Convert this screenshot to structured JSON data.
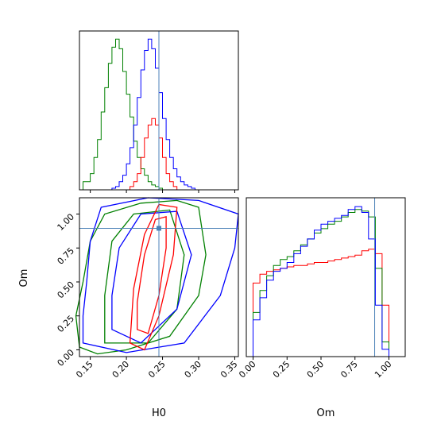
{
  "colors": {
    "red": "#ff0000",
    "green": "#008000",
    "blue": "#0000ff",
    "truth": "#4c82b8"
  },
  "chart_data": {
    "type": "corner",
    "parameters": [
      "H0",
      "Om"
    ],
    "truth": {
      "H0": 0.245,
      "Om": 0.895
    },
    "panels": [
      {
        "id": "hist-h0",
        "type": "histogram",
        "xlim": [
          0.135,
          0.355
        ],
        "bin_edges": [
          0.14,
          0.15,
          0.155,
          0.16,
          0.165,
          0.17,
          0.175,
          0.18,
          0.185,
          0.19,
          0.195,
          0.2,
          0.205,
          0.21,
          0.215,
          0.22,
          0.225,
          0.23,
          0.235,
          0.24,
          0.245,
          0.25,
          0.255,
          0.26,
          0.265,
          0.27,
          0.275,
          0.28,
          0.285,
          0.29,
          0.295,
          0.3
        ],
        "series": [
          {
            "color": "green",
            "counts": [
              0.05,
              0.1,
              0.2,
              0.31,
              0.48,
              0.63,
              0.78,
              0.88,
              0.93,
              0.87,
              0.73,
              0.59,
              0.45,
              0.3,
              0.2,
              0.13,
              0.09,
              0.05,
              0.03,
              0.02,
              0.01,
              0.0,
              0.0,
              0.0,
              0.0,
              0.0,
              0.0,
              0.0,
              0.0,
              0.0,
              0.0
            ]
          },
          {
            "color": "blue",
            "counts": [
              0.0,
              0.0,
              0.0,
              0.0,
              0.0,
              0.0,
              0.0,
              0.01,
              0.02,
              0.05,
              0.09,
              0.16,
              0.26,
              0.4,
              0.57,
              0.74,
              0.86,
              0.93,
              0.87,
              0.75,
              0.6,
              0.44,
              0.31,
              0.2,
              0.13,
              0.08,
              0.05,
              0.03,
              0.02,
              0.01,
              0.0
            ]
          },
          {
            "color": "red",
            "counts": [
              0.0,
              0.0,
              0.0,
              0.0,
              0.0,
              0.0,
              0.0,
              0.0,
              0.0,
              0.0,
              0.0,
              0.0,
              0.02,
              0.05,
              0.1,
              0.2,
              0.32,
              0.4,
              0.44,
              0.4,
              0.32,
              0.2,
              0.1,
              0.05,
              0.02,
              0.0,
              0.0,
              0.0,
              0.0,
              0.0,
              0.0
            ]
          }
        ]
      },
      {
        "id": "contour-h0-om",
        "type": "contour",
        "xlim": [
          0.135,
          0.355
        ],
        "ylim": [
          -0.05,
          1.12
        ],
        "xticks": [
          "0.15",
          "0.20",
          "0.25",
          "0.30",
          "0.35"
        ],
        "yticks": [
          "0.00",
          "0.25",
          "0.50",
          "0.75",
          "1.00"
        ],
        "xlabel": "H0",
        "ylabel": "Om",
        "series": [
          {
            "color": "green",
            "contours": [
              [
                [
                  0.135,
                  0.02
                ],
                [
                  0.16,
                  -0.03
                ],
                [
                  0.2,
                  0.0
                ],
                [
                  0.26,
                  0.1
                ],
                [
                  0.3,
                  0.4
                ],
                [
                  0.31,
                  0.7
                ],
                [
                  0.3,
                  1.05
                ],
                [
                  0.27,
                  1.1
                ],
                [
                  0.22,
                  1.08
                ],
                [
                  0.17,
                  1.0
                ],
                [
                  0.15,
                  0.8
                ],
                [
                  0.14,
                  0.5
                ],
                [
                  0.13,
                  0.25
                ]
              ],
              [
                [
                  0.17,
                  0.05
                ],
                [
                  0.23,
                  0.05
                ],
                [
                  0.27,
                  0.3
                ],
                [
                  0.28,
                  0.7
                ],
                [
                  0.26,
                  1.03
                ],
                [
                  0.21,
                  1.0
                ],
                [
                  0.18,
                  0.8
                ],
                [
                  0.17,
                  0.4
                ]
              ]
            ]
          },
          {
            "color": "blue",
            "contours": [
              [
                [
                  0.14,
                  0.05
                ],
                [
                  0.2,
                  -0.02
                ],
                [
                  0.28,
                  0.05
                ],
                [
                  0.33,
                  0.4
                ],
                [
                  0.35,
                  0.75
                ],
                [
                  0.355,
                  1.0
                ],
                [
                  0.3,
                  1.1
                ],
                [
                  0.23,
                  1.12
                ],
                [
                  0.165,
                  1.05
                ],
                [
                  0.15,
                  0.8
                ],
                [
                  0.145,
                  0.5
                ],
                [
                  0.14,
                  0.25
                ]
              ],
              [
                [
                  0.18,
                  0.15
                ],
                [
                  0.22,
                  0.05
                ],
                [
                  0.27,
                  0.3
                ],
                [
                  0.29,
                  0.7
                ],
                [
                  0.27,
                  1.02
                ],
                [
                  0.22,
                  1.0
                ],
                [
                  0.19,
                  0.75
                ],
                [
                  0.18,
                  0.4
                ]
              ]
            ]
          },
          {
            "color": "red",
            "contours": [
              [
                [
                  0.205,
                  0.05
                ],
                [
                  0.225,
                  0.0
                ],
                [
                  0.245,
                  0.25
                ],
                [
                  0.265,
                  0.7
                ],
                [
                  0.27,
                  1.05
                ],
                [
                  0.245,
                  1.07
                ],
                [
                  0.225,
                  0.85
                ],
                [
                  0.21,
                  0.45
                ]
              ],
              [
                [
                  0.215,
                  0.15
                ],
                [
                  0.23,
                  0.12
                ],
                [
                  0.245,
                  0.4
                ],
                [
                  0.255,
                  0.75
                ],
                [
                  0.255,
                  0.98
                ],
                [
                  0.24,
                  0.96
                ],
                [
                  0.225,
                  0.7
                ],
                [
                  0.215,
                  0.35
                ]
              ]
            ]
          }
        ]
      },
      {
        "id": "hist-om",
        "type": "histogram",
        "xlim": [
          -0.05,
          1.12
        ],
        "xticks": [
          "0.00",
          "0.25",
          "0.50",
          "0.75",
          "1.00"
        ],
        "xlabel": "Om",
        "bin_edges": [
          0.0,
          0.05,
          0.1,
          0.15,
          0.2,
          0.25,
          0.3,
          0.35,
          0.4,
          0.45,
          0.5,
          0.55,
          0.6,
          0.65,
          0.7,
          0.75,
          0.8,
          0.85,
          0.9,
          0.95,
          1.0
        ],
        "series": [
          {
            "color": "red",
            "counts": [
              0.5,
              0.56,
              0.58,
              0.59,
              0.6,
              0.61,
              0.62,
              0.62,
              0.63,
              0.64,
              0.64,
              0.65,
              0.66,
              0.67,
              0.68,
              0.69,
              0.72,
              0.73,
              0.7,
              0.35
            ]
          },
          {
            "color": "green",
            "counts": [
              0.3,
              0.45,
              0.55,
              0.62,
              0.66,
              0.68,
              0.72,
              0.76,
              0.8,
              0.84,
              0.87,
              0.9,
              0.92,
              0.95,
              0.98,
              1.0,
              0.99,
              0.95,
              0.6,
              0.1
            ]
          },
          {
            "color": "blue",
            "counts": [
              0.25,
              0.4,
              0.52,
              0.58,
              0.6,
              0.64,
              0.7,
              0.75,
              0.8,
              0.86,
              0.9,
              0.92,
              0.94,
              0.96,
              1.0,
              1.02,
              0.98,
              0.8,
              0.35,
              0.05
            ]
          }
        ]
      }
    ]
  }
}
